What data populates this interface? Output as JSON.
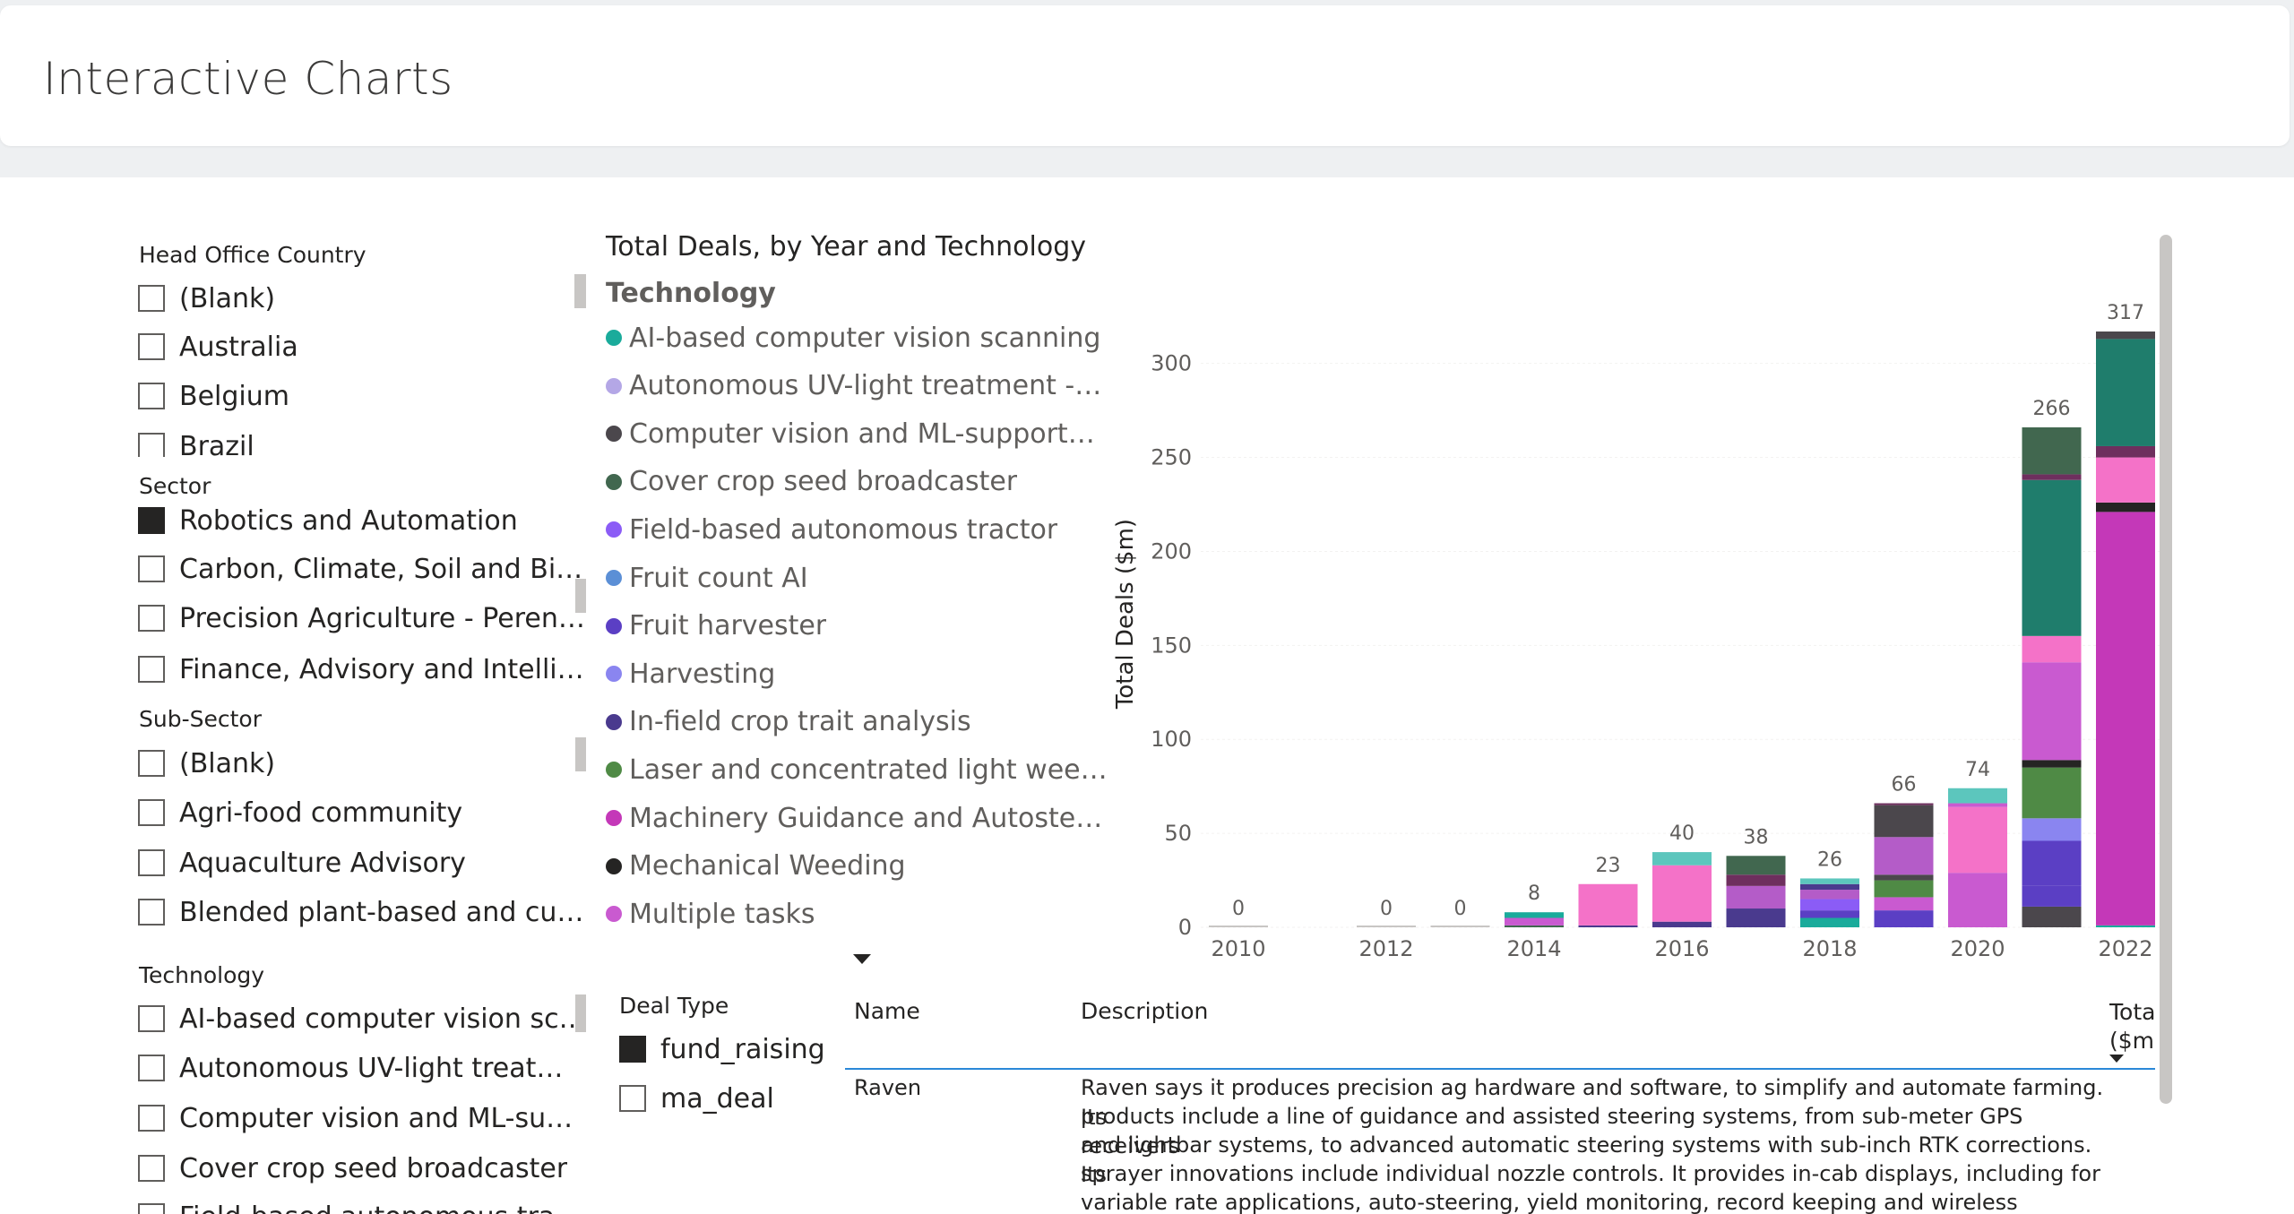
{
  "header": {
    "title": "Interactive Charts"
  },
  "slicers": {
    "head_office_country": {
      "title": "Head Office Country",
      "items": [
        {
          "label": "(Blank)",
          "checked": false
        },
        {
          "label": "Australia",
          "checked": false
        },
        {
          "label": "Belgium",
          "checked": false
        },
        {
          "label": "Brazil",
          "checked": false
        }
      ]
    },
    "sector": {
      "title": "Sector",
      "items": [
        {
          "label": "Robotics and Automation",
          "checked": true
        },
        {
          "label": "Carbon, Climate, Soil and Biodiv...",
          "checked": false
        },
        {
          "label": "Precision Agriculture - Perennial...",
          "checked": false
        },
        {
          "label": "Finance, Advisory and Intelligen...",
          "checked": false
        }
      ]
    },
    "sub_sector": {
      "title": "Sub-Sector",
      "items": [
        {
          "label": "(Blank)",
          "checked": false
        },
        {
          "label": "Agri-food community",
          "checked": false
        },
        {
          "label": "Aquaculture Advisory",
          "checked": false
        },
        {
          "label": "Blended plant-based and cultiv...",
          "checked": false
        }
      ]
    },
    "technology": {
      "title": "Technology",
      "items": [
        {
          "label": "AI-based computer vision scann...",
          "checked": false
        },
        {
          "label": "Autonomous UV-light treatmen...",
          "checked": false
        },
        {
          "label": "Computer vision and ML-suppo...",
          "checked": false
        },
        {
          "label": "Cover crop seed broadcaster",
          "checked": false
        },
        {
          "label": "Field-based autonomous tractor",
          "checked": false
        }
      ]
    },
    "deal_type": {
      "title": "Deal Type",
      "items": [
        {
          "label": "fund_raising",
          "checked": true
        },
        {
          "label": "ma_deal",
          "checked": false
        }
      ]
    }
  },
  "chart": {
    "title": "Total Deals, by Year and Technology",
    "legend_title": "Technology",
    "legend": [
      {
        "label": "AI-based computer vision scanning",
        "color": "#1aab9b"
      },
      {
        "label": "Autonomous UV-light treatment - In...",
        "color": "#b4a7e6"
      },
      {
        "label": "Computer vision and ML-supported ...",
        "color": "#4b474c"
      },
      {
        "label": "Cover crop seed broadcaster",
        "color": "#41674f"
      },
      {
        "label": "Field-based autonomous tractor",
        "color": "#8b5cf6"
      },
      {
        "label": "Fruit count AI",
        "color": "#5b8fd6"
      },
      {
        "label": "Fruit harvester",
        "color": "#5b3fc4"
      },
      {
        "label": "Harvesting",
        "color": "#8a85f0"
      },
      {
        "label": "In-field crop trait analysis",
        "color": "#4a3a8e"
      },
      {
        "label": "Laser and concentrated light weeding",
        "color": "#4f8a45"
      },
      {
        "label": "Machinery Guidance and Autosteerin...",
        "color": "#c438b8"
      },
      {
        "label": "Mechanical Weeding",
        "color": "#252423"
      },
      {
        "label": "Multiple tasks",
        "color": "#c95ad0"
      }
    ]
  },
  "chart_data": {
    "type": "bar",
    "stacked": true,
    "title": "Total Deals, by Year and Technology",
    "ylabel": "Total Deals ($m)",
    "xlabel": "",
    "ylim": [
      0,
      317
    ],
    "y_ticks": [
      "0",
      "50",
      "100",
      "150",
      "200",
      "250",
      "300"
    ],
    "x_ticks": [
      "2010",
      "2012",
      "2014",
      "2016",
      "2018",
      "2020",
      "2022"
    ],
    "categories": [
      "2010",
      "2011",
      "2012",
      "2013",
      "2014",
      "2015",
      "2016",
      "2017",
      "2018",
      "2019",
      "2020",
      "2021",
      "2022"
    ],
    "totals": [
      0,
      null,
      0,
      0,
      8,
      23,
      40,
      38,
      26,
      66,
      74,
      266,
      317
    ],
    "total_labels": [
      "0",
      "",
      "0",
      "0",
      "8",
      "23",
      "40",
      "38",
      "26",
      "66",
      "74",
      "266",
      "317"
    ],
    "stacks": [
      [],
      [],
      [],
      [],
      [
        {
          "v": 1,
          "c": "#41674f"
        },
        {
          "v": 4,
          "c": "#c95ad0"
        },
        {
          "v": 3,
          "c": "#1aab9b"
        }
      ],
      [
        {
          "v": 1,
          "c": "#4a3a8e"
        },
        {
          "v": 22,
          "c": "#f472c8"
        }
      ],
      [
        {
          "v": 3,
          "c": "#4a3a8e"
        },
        {
          "v": 30,
          "c": "#f472c8"
        },
        {
          "v": 7,
          "c": "#5cc6bd"
        }
      ],
      [
        {
          "v": 10,
          "c": "#4a3a8e"
        },
        {
          "v": 12,
          "c": "#b45cc8"
        },
        {
          "v": 6,
          "c": "#6e2f5e"
        },
        {
          "v": 10,
          "c": "#41674f"
        }
      ],
      [
        {
          "v": 5,
          "c": "#1aab9b"
        },
        {
          "v": 4,
          "c": "#5b3fc4"
        },
        {
          "v": 6,
          "c": "#8b5cf6"
        },
        {
          "v": 5,
          "c": "#b45cc8"
        },
        {
          "v": 3,
          "c": "#4a3a8e"
        },
        {
          "v": 3,
          "c": "#5cc6bd"
        }
      ],
      [
        {
          "v": 9,
          "c": "#5b3fc4"
        },
        {
          "v": 7,
          "c": "#c95ad0"
        },
        {
          "v": 9,
          "c": "#4f8a45"
        },
        {
          "v": 3,
          "c": "#4b474c"
        },
        {
          "v": 20,
          "c": "#b45cc8"
        },
        {
          "v": 17,
          "c": "#4b474c"
        },
        {
          "v": 1,
          "c": "#6e2f5e"
        }
      ],
      [
        {
          "v": 29,
          "c": "#c95ad0"
        },
        {
          "v": 35,
          "c": "#f472c8"
        },
        {
          "v": 2,
          "c": "#c95ad0"
        },
        {
          "v": 8,
          "c": "#5cc6bd"
        }
      ],
      [
        {
          "v": 11,
          "c": "#4b474c"
        },
        {
          "v": 11,
          "c": "#5b3fc4"
        },
        {
          "v": 24,
          "c": "#5b3fc4"
        },
        {
          "v": 12,
          "c": "#8a85f0"
        },
        {
          "v": 27,
          "c": "#4f8a45"
        },
        {
          "v": 4,
          "c": "#252423"
        },
        {
          "v": 52,
          "c": "#c95ad0"
        },
        {
          "v": 14,
          "c": "#f472c8"
        },
        {
          "v": 83,
          "c": "#1f7d6c"
        },
        {
          "v": 3,
          "c": "#6e2f5e"
        },
        {
          "v": 25,
          "c": "#41674f"
        }
      ],
      [
        {
          "v": 1,
          "c": "#1aab9b"
        },
        {
          "v": 220,
          "c": "#c438b8"
        },
        {
          "v": 5,
          "c": "#252423"
        },
        {
          "v": 24,
          "c": "#f472c8"
        },
        {
          "v": 6,
          "c": "#6e2f5e"
        },
        {
          "v": 57,
          "c": "#1f7d6c"
        },
        {
          "v": 4,
          "c": "#4b474c"
        }
      ]
    ]
  },
  "table": {
    "headers": {
      "name": "Name",
      "description": "Description",
      "total": "Total ($m)"
    },
    "rows": [
      {
        "name": "Raven",
        "description_lines": [
          "Raven says it produces precision ag hardware and software, to simplify and automate farming. Its",
          "products include a line of guidance and assisted steering systems, from sub-meter GPS receivers",
          "and lightbar systems, to advanced automatic steering systems with sub-inch RTK corrections. Its",
          "sprayer innovations include individual nozzle controls. It provides in-cab displays, including for",
          "variable rate applications, auto-steering, yield monitoring, record keeping and wireless"
        ]
      }
    ]
  }
}
